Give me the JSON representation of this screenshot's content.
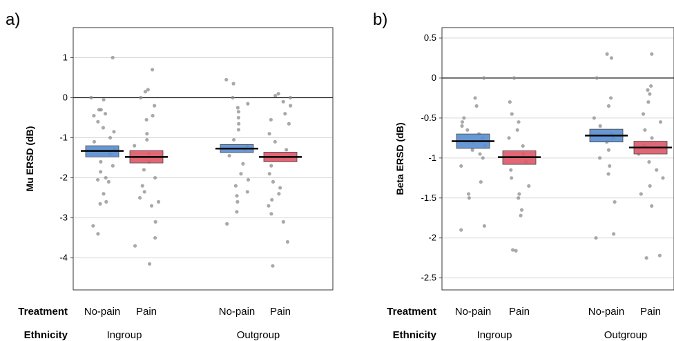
{
  "row_labels": {
    "treatment": "Treatment",
    "ethnicity": "Ethnicity"
  },
  "colors": {
    "no_pain": "#5b8fd0",
    "pain": "#e05a6a",
    "point": "#8c8c8c"
  },
  "chart_data": [
    {
      "panel": "a)",
      "type": "scatter",
      "ylabel": "Mu ERSD (dB)",
      "ylim": [
        -4.8,
        1.75
      ],
      "yticks": [
        "1",
        "0",
        "-1",
        "-2",
        "-3",
        "-4"
      ],
      "groups": [
        "Ingroup",
        "Outgroup"
      ],
      "treatments": [
        "No-pain",
        "Pain"
      ],
      "conditions": [
        {
          "group": "Ingroup",
          "treatment": "No-pain",
          "mean": -1.33,
          "ci": [
            -1.48,
            -1.2
          ],
          "points": [
            1.0,
            0.0,
            -0.05,
            -0.3,
            -0.3,
            -0.4,
            -0.45,
            -0.6,
            -0.75,
            -0.85,
            -1.0,
            -1.1,
            -1.3,
            -1.4,
            -1.6,
            -1.7,
            -1.85,
            -2.0,
            -2.05,
            -2.1,
            -2.4,
            -2.6,
            -2.65,
            -3.2,
            -3.4
          ]
        },
        {
          "group": "Ingroup",
          "treatment": "Pain",
          "mean": -1.48,
          "ci": [
            -1.63,
            -1.32
          ],
          "points": [
            0.7,
            0.2,
            0.15,
            0.0,
            -0.2,
            -0.45,
            -0.55,
            -0.9,
            -1.05,
            -1.2,
            -1.4,
            -1.6,
            -1.8,
            -2.0,
            -2.2,
            -2.35,
            -2.5,
            -2.6,
            -2.7,
            -3.1,
            -3.5,
            -3.7,
            -4.15
          ]
        },
        {
          "group": "Outgroup",
          "treatment": "No-pain",
          "mean": -1.27,
          "ci": [
            -1.37,
            -1.17
          ],
          "points": [
            0.45,
            0.35,
            0.0,
            -0.15,
            -0.25,
            -0.35,
            -0.5,
            -0.65,
            -0.8,
            -1.05,
            -1.2,
            -1.3,
            -1.45,
            -1.65,
            -1.9,
            -2.05,
            -2.2,
            -2.35,
            -2.45,
            -2.6,
            -2.85,
            -3.15
          ]
        },
        {
          "group": "Outgroup",
          "treatment": "Pain",
          "mean": -1.48,
          "ci": [
            -1.6,
            -1.36
          ],
          "points": [
            0.1,
            0.05,
            0.0,
            -0.1,
            -0.2,
            -0.4,
            -0.55,
            -0.65,
            -0.9,
            -1.1,
            -1.3,
            -1.5,
            -1.7,
            -1.9,
            -2.1,
            -2.25,
            -2.4,
            -2.55,
            -2.7,
            -2.9,
            -3.1,
            -3.6,
            -4.2
          ]
        }
      ]
    },
    {
      "panel": "b)",
      "type": "scatter",
      "ylabel": "Beta ERSD (dB)",
      "ylim": [
        -2.65,
        0.63
      ],
      "yticks": [
        "0.5",
        "0",
        "-0.5",
        "-1",
        "-1.5",
        "-2",
        "-2.5"
      ],
      "groups": [
        "Ingroup",
        "Outgroup"
      ],
      "treatments": [
        "No-pain",
        "Pain"
      ],
      "conditions": [
        {
          "group": "Ingroup",
          "treatment": "No-pain",
          "mean": -0.79,
          "ci": [
            -0.88,
            -0.7
          ],
          "points": [
            0.0,
            -0.25,
            -0.35,
            -0.5,
            -0.55,
            -0.6,
            -0.65,
            -0.7,
            -0.75,
            -0.8,
            -0.85,
            -0.9,
            -0.95,
            -1.0,
            -1.1,
            -1.3,
            -1.45,
            -1.5,
            -1.85,
            -1.9
          ]
        },
        {
          "group": "Ingroup",
          "treatment": "Pain",
          "mean": -0.99,
          "ci": [
            -1.08,
            -0.91
          ],
          "points": [
            0.0,
            -0.3,
            -0.45,
            -0.55,
            -0.65,
            -0.75,
            -0.85,
            -0.95,
            -1.05,
            -1.15,
            -1.25,
            -1.35,
            -1.45,
            -1.5,
            -1.65,
            -1.72,
            -2.15,
            -2.16
          ]
        },
        {
          "group": "Outgroup",
          "treatment": "No-pain",
          "mean": -0.72,
          "ci": [
            -0.8,
            -0.64
          ],
          "points": [
            0.3,
            0.25,
            0.0,
            -0.25,
            -0.35,
            -0.5,
            -0.6,
            -0.7,
            -0.75,
            -0.8,
            -0.9,
            -1.0,
            -1.1,
            -1.2,
            -1.55,
            -1.95,
            -2.0
          ]
        },
        {
          "group": "Outgroup",
          "treatment": "Pain",
          "mean": -0.87,
          "ci": [
            -0.95,
            -0.79
          ],
          "points": [
            0.3,
            -0.1,
            -0.15,
            -0.2,
            -0.3,
            -0.45,
            -0.55,
            -0.65,
            -0.75,
            -0.85,
            -0.95,
            -1.05,
            -1.15,
            -1.25,
            -1.35,
            -1.45,
            -1.6,
            -2.22,
            -2.25
          ]
        }
      ]
    }
  ]
}
